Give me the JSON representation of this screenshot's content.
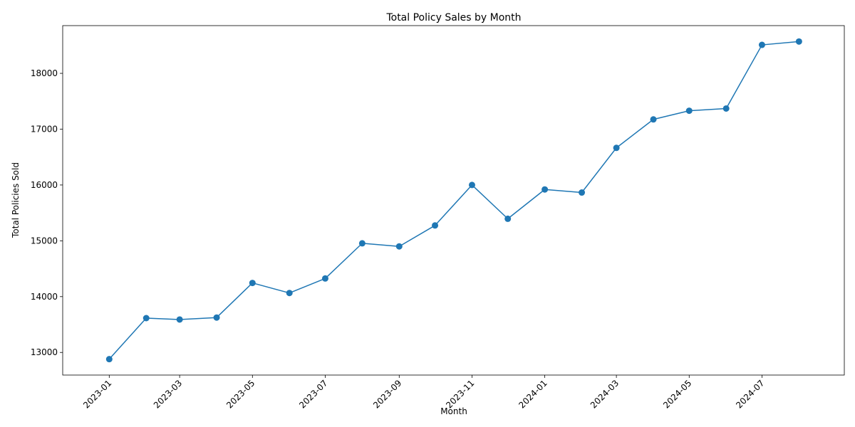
{
  "chart_data": {
    "type": "line",
    "title": "Total Policy Sales by Month",
    "xlabel": "Month",
    "ylabel": "Total Policies Sold",
    "x": [
      "2023-01",
      "2023-02",
      "2023-03",
      "2023-04",
      "2023-05",
      "2023-06",
      "2023-07",
      "2023-08",
      "2023-09",
      "2023-10",
      "2023-11",
      "2023-12",
      "2024-01",
      "2024-02",
      "2024-03",
      "2024-04",
      "2024-05",
      "2024-06",
      "2024-07",
      "2024-08"
    ],
    "series": [
      {
        "values": [
          12880,
          13615,
          13590,
          13625,
          14245,
          14065,
          14325,
          14955,
          14900,
          15275,
          16000,
          15395,
          15920,
          15865,
          16665,
          17175,
          17330,
          17370,
          18510,
          18570
        ]
      }
    ],
    "x_tick_labels": [
      "2023-01",
      "2023-03",
      "2023-05",
      "2023-07",
      "2023-09",
      "2023-11",
      "2024-01",
      "2024-03",
      "2024-05",
      "2024-07"
    ],
    "y_ticks": [
      13000,
      14000,
      15000,
      16000,
      17000,
      18000
    ],
    "xlim": [
      "2022-11-23",
      "2024-09-08"
    ],
    "ylim": [
      12595,
      18855
    ],
    "grid": false,
    "line_color": "#1f77b4",
    "marker": "circle"
  }
}
